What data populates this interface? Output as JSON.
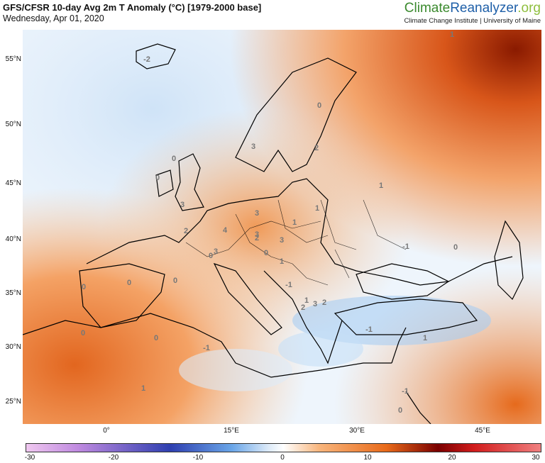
{
  "header": {
    "title": "GFS/CFSR 10-day Avg 2m T Anomaly (°C) [1979-2000 base]",
    "date": "Wednesday, Apr 01, 2020"
  },
  "brand": {
    "logo_part1": "Climate",
    "logo_part2": "Reanalyzer",
    "logo_part3": ".org",
    "subtitle": "Climate Change Institute | University of Maine"
  },
  "map": {
    "latitude_labels": [
      "55°N",
      "50°N",
      "45°N",
      "40°N",
      "35°N",
      "30°N",
      "25°N"
    ],
    "longitude_labels": [
      "0°",
      "15°E",
      "30°E",
      "45°E"
    ],
    "contour_labels": [
      "-2",
      "3",
      "0",
      "0",
      "0",
      "2",
      "1",
      "3",
      "3",
      "4",
      "2",
      "2",
      "3",
      "3",
      "1",
      "1",
      "3",
      "0",
      "0",
      "-1",
      "1",
      "1",
      "3",
      "2",
      "2",
      "0",
      "0",
      "-1",
      "0",
      "1",
      "-1",
      "0",
      "1",
      "1",
      "0",
      "0",
      "-1",
      "-1",
      "0"
    ],
    "colors": {
      "cold_extreme": "#f0c8f0",
      "cold_strong": "#2e3fb0",
      "cold_mild": "#6aa6e8",
      "neutral": "#ffffff",
      "warm_mild": "#f8b57c",
      "warm_strong": "#e86a1a",
      "warm_extreme": "#7a0000",
      "hot_max": "#f08080"
    }
  },
  "colorbar": {
    "ticks": [
      "-30",
      "-20",
      "-10",
      "0",
      "10",
      "20",
      "30"
    ],
    "range": [
      -30,
      30
    ]
  }
}
